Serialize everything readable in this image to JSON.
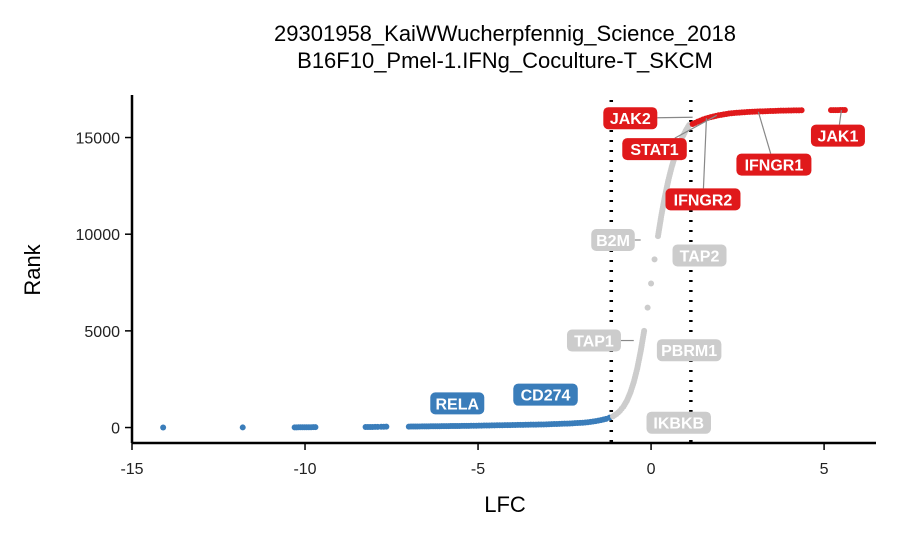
{
  "chart_data": {
    "type": "scatter",
    "title": "29301958_KaiWWucherpfennig_Science_2018",
    "subtitle": "B16F10_Pmel-1.IFNg_Coculture-T_SKCM",
    "xlabel": "LFC",
    "ylabel": "Rank",
    "xlim": [
      -15,
      6.5
    ],
    "ylim": [
      -800,
      17200
    ],
    "xticks": [
      -15,
      -10,
      -5,
      0,
      5
    ],
    "xtick_labels": [
      "-15",
      "-10",
      "-5",
      "0",
      "5"
    ],
    "yticks": [
      0,
      5000,
      10000,
      15000
    ],
    "ytick_labels": [
      "0",
      "5000",
      "10000",
      "15000"
    ],
    "thresholds": [
      -1.15,
      1.15
    ],
    "grid": false,
    "legend": "none",
    "colors": {
      "negative": "#3a7dba",
      "neutral": "#cccccc",
      "positive": "#e0191b",
      "threshold": "#000000"
    },
    "series": [
      {
        "category": "negative",
        "points": [
          [
            -14.1,
            0
          ],
          [
            -11.8,
            5
          ],
          [
            -10.3,
            10
          ],
          [
            -9.95,
            15
          ],
          [
            -9.7,
            20
          ],
          [
            -8.25,
            25
          ],
          [
            -8.05,
            30
          ],
          [
            -7.9,
            35
          ],
          [
            -7.8,
            40
          ],
          [
            -7.65,
            45
          ],
          [
            -7.0,
            50
          ],
          [
            -6.75,
            55
          ],
          [
            -6.55,
            60
          ],
          [
            -6.3,
            65
          ],
          [
            -6.05,
            70
          ],
          [
            -5.85,
            75
          ],
          [
            -5.6,
            80
          ],
          [
            -5.4,
            85
          ],
          [
            -5.2,
            90
          ],
          [
            -5.05,
            95
          ],
          [
            -4.9,
            100
          ],
          [
            -4.75,
            105
          ],
          [
            -4.6,
            110
          ],
          [
            -4.45,
            115
          ],
          [
            -4.3,
            120
          ],
          [
            -4.15,
            125
          ],
          [
            -4.0,
            130
          ],
          [
            -3.85,
            135
          ],
          [
            -3.7,
            140
          ],
          [
            -3.55,
            145
          ],
          [
            -3.4,
            150
          ],
          [
            -3.25,
            155
          ],
          [
            -3.1,
            160
          ],
          [
            -2.95,
            170
          ],
          [
            -2.8,
            180
          ],
          [
            -2.65,
            190
          ],
          [
            -2.5,
            200
          ],
          [
            -2.35,
            210
          ],
          [
            -2.2,
            225
          ],
          [
            -2.05,
            240
          ],
          [
            -1.9,
            260
          ],
          [
            -1.75,
            290
          ],
          [
            -1.6,
            330
          ],
          [
            -1.45,
            380
          ],
          [
            -1.3,
            450
          ],
          [
            -1.2,
            510
          ]
        ]
      },
      {
        "category": "neutral",
        "points": [
          [
            -1.1,
            580
          ],
          [
            -1.0,
            700
          ],
          [
            -0.9,
            860
          ],
          [
            -0.8,
            1080
          ],
          [
            -0.7,
            1380
          ],
          [
            -0.6,
            1800
          ],
          [
            -0.5,
            2350
          ],
          [
            -0.4,
            3050
          ],
          [
            -0.3,
            3950
          ],
          [
            -0.2,
            5000
          ],
          [
            -0.1,
            6200
          ],
          [
            0.0,
            7450
          ],
          [
            0.1,
            8700
          ],
          [
            0.2,
            9900
          ],
          [
            0.3,
            11000
          ],
          [
            0.4,
            11950
          ],
          [
            0.5,
            12800
          ],
          [
            0.6,
            13500
          ],
          [
            0.7,
            14100
          ],
          [
            0.8,
            14600
          ],
          [
            0.9,
            15000
          ],
          [
            1.0,
            15350
          ],
          [
            1.1,
            15650
          ]
        ]
      },
      {
        "category": "positive",
        "points": [
          [
            1.2,
            15700
          ],
          [
            1.35,
            15820
          ],
          [
            1.5,
            15930
          ],
          [
            1.65,
            16020
          ],
          [
            1.8,
            16090
          ],
          [
            1.95,
            16150
          ],
          [
            2.1,
            16200
          ],
          [
            2.25,
            16240
          ],
          [
            2.4,
            16270
          ],
          [
            2.55,
            16290
          ],
          [
            2.7,
            16310
          ],
          [
            2.85,
            16325
          ],
          [
            3.0,
            16340
          ],
          [
            3.15,
            16350
          ],
          [
            3.3,
            16360
          ],
          [
            3.45,
            16370
          ],
          [
            3.6,
            16380
          ],
          [
            3.75,
            16390
          ],
          [
            3.9,
            16395
          ],
          [
            4.05,
            16400
          ],
          [
            4.2,
            16405
          ],
          [
            4.35,
            16410
          ],
          [
            5.2,
            16415
          ],
          [
            5.4,
            16420
          ],
          [
            5.6,
            16425
          ]
        ]
      }
    ],
    "labels": [
      {
        "text": "JAK2",
        "category": "positive",
        "point": [
          1.2,
          16050
        ],
        "anchor": [
          -0.6,
          16000
        ]
      },
      {
        "text": "STAT1",
        "category": "positive",
        "point": [
          1.9,
          16150
        ],
        "anchor": [
          0.1,
          14400
        ]
      },
      {
        "text": "IFNGR1",
        "category": "positive",
        "point": [
          3.1,
          16330
        ],
        "anchor": [
          3.55,
          13600
        ]
      },
      {
        "text": "JAK1",
        "category": "positive",
        "point": [
          5.5,
          16420
        ],
        "anchor": [
          5.4,
          15100
        ]
      },
      {
        "text": "IFNGR2",
        "category": "positive",
        "point": [
          1.6,
          16000
        ],
        "anchor": [
          1.5,
          11800
        ]
      },
      {
        "text": "B2M",
        "category": "neutral",
        "point": [
          -0.3,
          9700
        ],
        "anchor": [
          -1.1,
          9700
        ]
      },
      {
        "text": "TAP2",
        "category": "neutral",
        "point": [
          0.9,
          8900
        ],
        "anchor": [
          1.4,
          8900
        ]
      },
      {
        "text": "TAP1",
        "category": "neutral",
        "point": [
          -0.5,
          4500
        ],
        "anchor": [
          -1.65,
          4500
        ]
      },
      {
        "text": "PBRM1",
        "category": "neutral",
        "point": [
          0.6,
          4000
        ],
        "anchor": [
          1.1,
          4000
        ]
      },
      {
        "text": "IKBKB",
        "category": "neutral",
        "point": [
          0.0,
          250
        ],
        "anchor": [
          0.8,
          250
        ]
      },
      {
        "text": "RELA",
        "category": "negative",
        "point": [
          -5.2,
          1250
        ],
        "anchor": [
          -5.6,
          1250
        ]
      },
      {
        "text": "CD274",
        "category": "negative",
        "point": [
          -3.2,
          1700
        ],
        "anchor": [
          -3.05,
          1700
        ]
      }
    ]
  }
}
